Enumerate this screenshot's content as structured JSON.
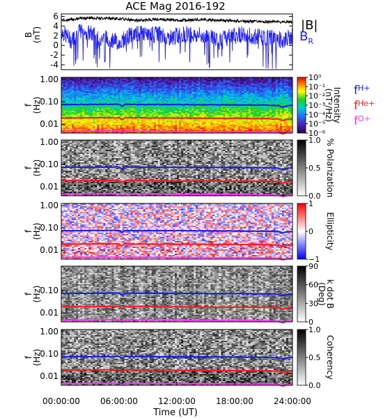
{
  "title": "ACE Mag 2016-192",
  "colors": {
    "B": "#000000",
    "BR": "#2020ff",
    "fH": "#1818e8",
    "fHe": "#ff1a1a",
    "fO": "#ff33ff"
  },
  "chart_data": [
    {
      "type": "line",
      "ylabel_main": "B",
      "ylabel_unit": "(nT)",
      "yticks": [
        "6",
        "4",
        "2",
        "0",
        "-2",
        "-4"
      ],
      "ylim": [
        -5,
        6.5
      ],
      "xlim_hours": [
        0,
        24
      ],
      "legend": [
        {
          "name": "|B|"
        },
        {
          "name": "B",
          "sub": "R"
        }
      ],
      "series": [
        {
          "key": "B_mag",
          "x_hours": [
            0,
            1,
            2,
            3,
            4,
            5,
            6,
            7,
            8,
            9,
            10,
            11,
            12,
            13,
            14,
            15,
            16,
            17,
            18,
            19,
            20,
            21,
            22,
            23,
            24
          ],
          "values": [
            5.2,
            5.3,
            5.6,
            5.7,
            5.6,
            5.6,
            5.5,
            5.3,
            5.2,
            5.3,
            5.4,
            5.3,
            5.2,
            5.2,
            5.3,
            5.3,
            5.2,
            5.1,
            5.1,
            5.0,
            5.0,
            4.9,
            4.9,
            4.8,
            4.9
          ]
        },
        {
          "key": "B_R",
          "x_hours": [
            0,
            1,
            2,
            3,
            4,
            5,
            6,
            7,
            8,
            9,
            10,
            11,
            12,
            13,
            14,
            15,
            16,
            17,
            18,
            19,
            20,
            21,
            22,
            23,
            24
          ],
          "values": [
            3.0,
            1.0,
            3.0,
            2.5,
            1.5,
            1.5,
            0.5,
            2.0,
            2.5,
            2.0,
            2.5,
            1.5,
            2.0,
            2.5,
            2.0,
            2.0,
            1.5,
            1.5,
            2.0,
            2.5,
            2.0,
            1.5,
            1.5,
            1.0,
            2.0
          ]
        }
      ]
    },
    {
      "type": "heatmap",
      "ylabel_main": "f",
      "ylabel_unit": "(Hz)",
      "yticks": [
        "1.00",
        "0.10",
        "0.01"
      ],
      "ylim_hz": [
        0.004,
        1.2
      ],
      "colorbar": {
        "ticks": [
          "10⁰",
          "10⁻¹",
          "10⁻²",
          "10⁻³",
          "10⁻⁴",
          "10⁻⁵",
          "10⁻⁶"
        ],
        "label": "Intensity",
        "label2": "(nT²/Hz)",
        "scale": "spectral"
      },
      "legend": [
        {
          "name": "f",
          "sub": "H+"
        },
        {
          "name": "f",
          "sub": "He+"
        },
        {
          "name": "f",
          "sub": "O+"
        }
      ]
    },
    {
      "type": "heatmap",
      "ylabel_main": "f",
      "ylabel_unit": "(Hz)",
      "yticks": [
        "1.00",
        "0.10",
        "0.01"
      ],
      "colorbar": {
        "ticks": [
          "1.0",
          "0.5",
          "0.0"
        ],
        "label": "% Polarization",
        "label2": "",
        "scale": "gray"
      }
    },
    {
      "type": "heatmap",
      "ylabel_main": "f",
      "ylabel_unit": "(Hz)",
      "yticks": [
        "1.00",
        "0.10",
        "0.01"
      ],
      "colorbar": {
        "ticks": [
          "1",
          "0",
          "−1"
        ],
        "label": "Ellipticity",
        "label2": "",
        "scale": "bwr"
      }
    },
    {
      "type": "heatmap",
      "ylabel_main": "f",
      "ylabel_unit": "(Hz)",
      "yticks": [
        "0.10",
        "0.01"
      ],
      "colorbar": {
        "ticks": [
          "90",
          "60",
          "30",
          "0"
        ],
        "label": "k dot B",
        "label2": "(Deg)",
        "scale": "gray"
      }
    },
    {
      "type": "heatmap",
      "ylabel_main": "f",
      "ylabel_unit": "(Hz)",
      "yticks": [
        "1.00",
        "0.10",
        "0.01"
      ],
      "colorbar": {
        "ticks": [
          "1.0",
          "0.5",
          "0.0"
        ],
        "label": "Coherency",
        "label2": "",
        "scale": "gray"
      }
    }
  ],
  "gyro_lines_hz": {
    "x_hours": [
      0,
      2,
      4,
      6,
      6.3,
      6.6,
      7,
      9,
      12,
      15,
      18,
      21,
      22.5,
      23,
      23.5,
      24
    ],
    "fH": [
      0.075,
      0.076,
      0.077,
      0.078,
      0.062,
      0.078,
      0.077,
      0.076,
      0.075,
      0.074,
      0.073,
      0.071,
      0.069,
      0.058,
      0.068,
      0.069
    ],
    "fHe": [
      0.019,
      0.019,
      0.0195,
      0.0195,
      0.0155,
      0.0195,
      0.0193,
      0.019,
      0.0188,
      0.0185,
      0.0182,
      0.0178,
      0.0172,
      0.0145,
      0.017,
      0.0172
    ],
    "fO": [
      0.0047,
      0.0048,
      0.0049,
      0.0049,
      0.0039,
      0.0049,
      0.0048,
      0.0048,
      0.0047,
      0.0046,
      0.0046,
      0.0045,
      0.0043,
      0.0036,
      0.0043,
      0.0043
    ]
  },
  "xaxis": {
    "ticks": [
      "00:00:00",
      "06:00:00",
      "12:00:00",
      "18:00:00",
      "24:00:00"
    ],
    "label": "Time (UT)"
  }
}
